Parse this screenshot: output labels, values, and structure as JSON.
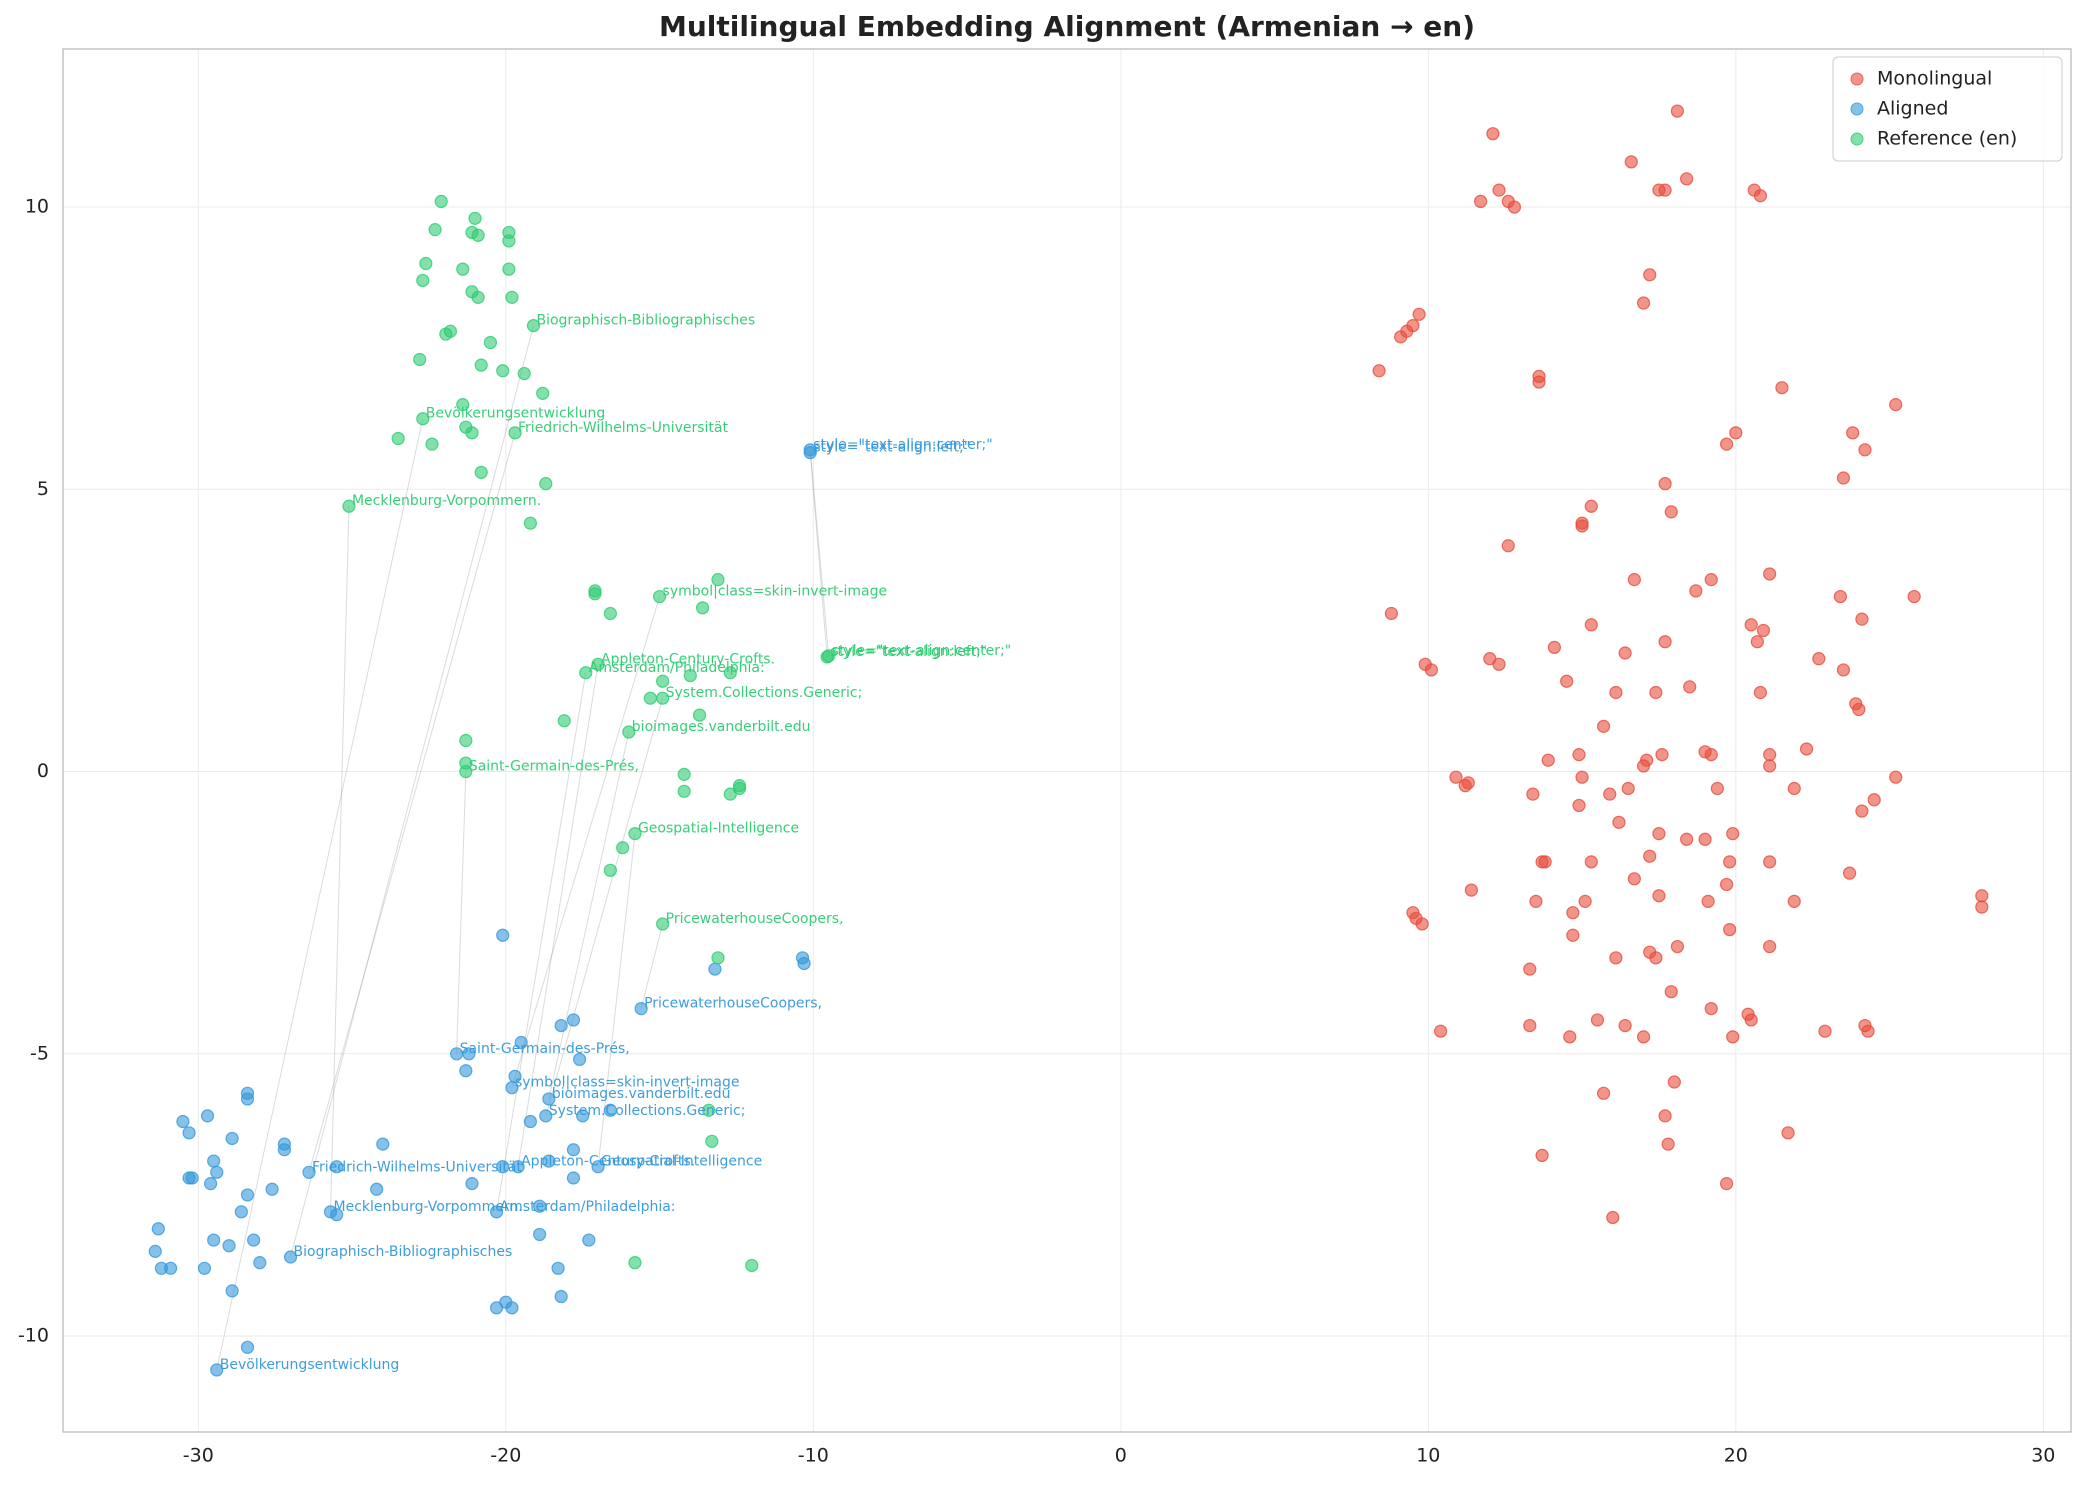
{
  "chart_data": {
    "type": "scatter",
    "title": "Multilingual Embedding Alignment (Armenian → en)",
    "xlim": [
      -34.4,
      30.9
    ],
    "ylim": [
      -11.7,
      12.8
    ],
    "xticks": [
      -30,
      -20,
      -10,
      0,
      10,
      20,
      30
    ],
    "yticks": [
      -10,
      -5,
      0,
      5,
      10
    ],
    "grid": true,
    "legend": "upper right",
    "series": [
      {
        "name": "Monolingual",
        "color": "#e74c3c",
        "x": [
          12.1,
          18.1,
          16.6,
          17.5,
          17.7,
          18.4,
          12.3,
          12.6,
          11.7,
          12.8,
          20.6,
          20.8,
          17.2,
          17.0,
          9.7,
          9.5,
          9.3,
          9.1,
          8.4,
          13.6,
          13.6,
          21.5,
          25.2,
          23.8,
          20.0,
          19.7,
          24.2,
          17.7,
          23.5,
          15.3,
          17.9,
          15.0,
          15.0,
          12.6,
          16.7,
          19.2,
          18.7,
          21.1,
          23.4,
          25.8,
          24.1,
          8.8,
          9.9,
          10.1,
          15.3,
          20.5,
          17.7,
          14.1,
          12.0,
          12.3,
          16.4,
          20.7,
          20.9,
          22.7,
          23.5,
          14.5,
          23.9,
          24.0,
          16.1,
          17.4,
          18.5,
          20.8,
          15.7,
          22.3,
          10.9,
          11.3,
          11.2,
          13.9,
          14.9,
          17.1,
          17.6,
          19.2,
          19.0,
          21.1,
          21.1,
          17.0,
          15.0,
          15.9,
          16.5,
          19.4,
          21.9,
          24.5,
          25.2,
          13.4,
          14.9,
          24.1,
          16.2,
          17.5,
          18.4,
          19.0,
          19.9,
          13.7,
          13.8,
          15.3,
          17.2,
          19.8,
          21.1,
          16.7,
          19.7,
          23.7,
          11.4,
          13.5,
          15.1,
          17.5,
          19.1,
          21.9,
          28.0,
          28.0,
          9.5,
          9.6,
          9.8,
          14.7,
          14.7,
          17.2,
          17.4,
          18.1,
          19.8,
          21.1,
          13.3,
          16.1,
          17.9,
          19.2,
          20.4,
          20.5,
          10.4,
          13.3,
          14.6,
          15.5,
          16.4,
          17.0,
          19.9,
          22.9,
          24.2,
          24.3,
          18.0,
          15.7,
          17.7,
          21.7,
          17.8,
          13.7,
          19.7,
          16.0
        ],
        "y": [
          11.3,
          11.7,
          10.8,
          10.3,
          10.3,
          10.5,
          10.3,
          10.1,
          10.1,
          10.0,
          10.3,
          10.2,
          8.8,
          8.3,
          8.1,
          7.9,
          7.8,
          7.7,
          7.1,
          7.0,
          6.9,
          6.8,
          6.5,
          6.0,
          6.0,
          5.8,
          5.7,
          5.1,
          5.2,
          4.7,
          4.6,
          4.4,
          4.35,
          4.0,
          3.4,
          3.4,
          3.2,
          3.5,
          3.1,
          3.1,
          2.7,
          2.8,
          1.9,
          1.8,
          2.6,
          2.6,
          2.3,
          2.2,
          2.0,
          1.9,
          2.1,
          2.3,
          2.5,
          2.0,
          1.8,
          1.6,
          1.2,
          1.1,
          1.4,
          1.4,
          1.5,
          1.4,
          0.8,
          0.4,
          -0.1,
          -0.2,
          -0.25,
          0.2,
          0.3,
          0.2,
          0.3,
          0.3,
          0.35,
          0.3,
          0.1,
          0.1,
          -0.1,
          -0.4,
          -0.3,
          -0.3,
          -0.3,
          -0.5,
          -0.1,
          -0.4,
          -0.6,
          -0.7,
          -0.9,
          -1.1,
          -1.2,
          -1.2,
          -1.1,
          -1.6,
          -1.6,
          -1.6,
          -1.5,
          -1.6,
          -1.6,
          -1.9,
          -2.0,
          -1.8,
          -2.1,
          -2.3,
          -2.3,
          -2.2,
          -2.3,
          -2.3,
          -2.2,
          -2.4,
          -2.5,
          -2.6,
          -2.7,
          -2.5,
          -2.9,
          -3.2,
          -3.3,
          -3.1,
          -2.8,
          -3.1,
          -3.5,
          -3.3,
          -3.9,
          -4.2,
          -4.3,
          -4.4,
          -4.6,
          -4.5,
          -4.7,
          -4.4,
          -4.5,
          -4.7,
          -4.7,
          -4.6,
          -4.5,
          -4.6,
          -5.5,
          -5.7,
          -6.1,
          -6.4,
          -6.6,
          -6.8,
          -7.3,
          -7.9
        ]
      },
      {
        "name": "Aligned",
        "color": "#3498db",
        "x": [
          -20.1,
          -10.3,
          -10.35,
          -13.2,
          -15.6,
          -17.8,
          -18.2,
          -19.5,
          -17.6,
          -21.2,
          -21.6,
          -21.3,
          -19.7,
          -19.8,
          -18.6,
          -18.7,
          -19.2,
          -17.5,
          -16.6,
          -17.8,
          -18.6,
          -17.8,
          -19.6,
          -20.1,
          -17.0,
          -21.1,
          -20.3,
          -18.9,
          -18.9,
          -17.3,
          -18.3,
          -18.2,
          -20.3,
          -20.0,
          -19.8,
          -28.4,
          -29.4,
          -27.0,
          -25.7,
          -25.5,
          -26.4,
          -25.5,
          -24.0,
          -24.2,
          -27.2,
          -27.2,
          -27.6,
          -28.4,
          -28.4,
          -29.7,
          -30.5,
          -30.3,
          -28.9,
          -29.5,
          -29.4,
          -30.2,
          -30.3,
          -29.6,
          -28.4,
          -28.6,
          -31.3,
          -29.5,
          -28.2,
          -29.0,
          -31.4,
          -31.2,
          -30.9,
          -29.8,
          -28.0,
          -28.9,
          -10.1,
          -10.1
        ],
        "y": [
          -2.9,
          -3.4,
          -3.3,
          -3.5,
          -4.2,
          -4.4,
          -4.5,
          -4.8,
          -5.1,
          -5.0,
          -5.0,
          -5.3,
          -5.4,
          -5.6,
          -5.8,
          -6.1,
          -6.2,
          -6.1,
          -6.0,
          -6.7,
          -6.9,
          -7.2,
          -7.0,
          -7.0,
          -7.0,
          -7.3,
          -7.8,
          -7.7,
          -8.2,
          -8.3,
          -8.8,
          -9.3,
          -9.5,
          -9.4,
          -9.5,
          -10.2,
          -10.6,
          -8.6,
          -7.8,
          -7.85,
          -7.1,
          -7.0,
          -6.6,
          -7.4,
          -6.6,
          -6.7,
          -7.4,
          -5.7,
          -5.8,
          -6.1,
          -6.2,
          -6.4,
          -6.5,
          -6.9,
          -7.1,
          -7.2,
          -7.2,
          -7.3,
          -7.5,
          -7.8,
          -8.1,
          -8.3,
          -8.3,
          -8.4,
          -8.5,
          -8.8,
          -8.8,
          -8.8,
          -8.7,
          -9.2,
          5.7,
          5.65
        ],
        "labels": [
          null,
          null,
          null,
          null,
          "PricewaterhouseCoopers,",
          null,
          null,
          null,
          null,
          null,
          "Saint-Germain-des-Prés,",
          null,
          null,
          "symbol|class=skin-invert-image",
          "bioimages.vanderbilt.edu",
          "System.Collections.Generic;",
          null,
          null,
          null,
          null,
          null,
          null,
          "Appleton-Century-Crofts.",
          null,
          "Geospatial-Intelligence",
          null,
          "Amsterdam/Philadelphia:",
          null,
          null,
          null,
          null,
          null,
          null,
          null,
          null,
          null,
          "Bevölkerungsentwicklung",
          "Biographisch-Bibliographisches",
          "Mecklenburg-Vorpommern.",
          null,
          "Friedrich-Wilhelms-Universität",
          null,
          null,
          null,
          null,
          null,
          null,
          null,
          null,
          null,
          null,
          null,
          null,
          null,
          null,
          null,
          null,
          null,
          null,
          null,
          null,
          null,
          null,
          null,
          null,
          null,
          null,
          null,
          null,
          null,
          "style=\"text-align:center;\"",
          "style=\"text-align:left;\""
        ]
      },
      {
        "name": "Reference (en)",
        "color": "#2ecc71",
        "x": [
          -22.1,
          -21.0,
          -22.3,
          -21.1,
          -20.9,
          -19.9,
          -19.9,
          -22.6,
          -21.4,
          -19.9,
          -22.7,
          -21.1,
          -20.9,
          -19.8,
          -19.1,
          -21.8,
          -21.95,
          -20.5,
          -22.8,
          -20.8,
          -20.1,
          -19.4,
          -18.8,
          -21.4,
          -22.7,
          -21.3,
          -21.1,
          -19.7,
          -23.5,
          -22.4,
          -20.8,
          -18.7,
          -25.1,
          -19.2,
          -13.1,
          -17.1,
          -17.1,
          -15.0,
          -13.6,
          -16.6,
          -9.5,
          -9.55,
          -17.0,
          -17.4,
          -14.0,
          -12.7,
          -14.9,
          -15.3,
          -14.9,
          -13.7,
          -18.1,
          -16.0,
          -21.3,
          -21.3,
          -21.3,
          -14.2,
          -12.4,
          -12.4,
          -14.2,
          -12.7,
          -15.8,
          -16.2,
          -16.6,
          -14.9,
          -13.1,
          -13.4,
          -13.3,
          -15.8,
          -12.0
        ],
        "y": [
          10.1,
          9.8,
          9.6,
          9.55,
          9.5,
          9.55,
          9.4,
          9.0,
          8.9,
          8.9,
          8.7,
          8.5,
          8.4,
          8.4,
          7.9,
          7.8,
          7.75,
          7.6,
          7.3,
          7.2,
          7.1,
          7.05,
          6.7,
          6.5,
          6.25,
          6.1,
          6.0,
          6.0,
          5.9,
          5.8,
          5.3,
          5.1,
          4.7,
          4.4,
          3.4,
          3.2,
          3.15,
          3.1,
          2.9,
          2.8,
          2.05,
          2.03,
          1.9,
          1.75,
          1.7,
          1.75,
          1.6,
          1.3,
          1.3,
          1.0,
          0.9,
          0.7,
          0.55,
          0.15,
          0.0,
          -0.05,
          -0.25,
          -0.3,
          -0.35,
          -0.4,
          -1.1,
          -1.35,
          -1.75,
          -2.7,
          -3.3,
          -6.0,
          -6.55,
          -8.7,
          -8.75
        ],
        "labels": [
          null,
          null,
          null,
          null,
          null,
          null,
          null,
          null,
          null,
          null,
          null,
          null,
          null,
          null,
          "Biographisch-Bibliographisches",
          null,
          null,
          null,
          null,
          null,
          null,
          null,
          null,
          null,
          "Bevölkerungsentwicklung",
          null,
          null,
          "Friedrich-Wilhelms-Universität",
          null,
          null,
          null,
          null,
          "Mecklenburg-Vorpommern.",
          null,
          null,
          null,
          null,
          "symbol|class=skin-invert-image",
          null,
          null,
          "style=\"text-align:center;\"",
          "style=\"text-align:left;\"",
          "Appleton-Century-Crofts.",
          "Amsterdam/Philadelphia:",
          null,
          null,
          null,
          null,
          "System.Collections.Generic;",
          null,
          null,
          "bioimages.vanderbilt.edu",
          null,
          null,
          "Saint-Germain-des-Prés,",
          null,
          null,
          null,
          null,
          null,
          "Geospatial-Intelligence",
          null,
          null,
          "PricewaterhouseCoopers,",
          null,
          null,
          null,
          null,
          null
        ]
      }
    ]
  }
}
